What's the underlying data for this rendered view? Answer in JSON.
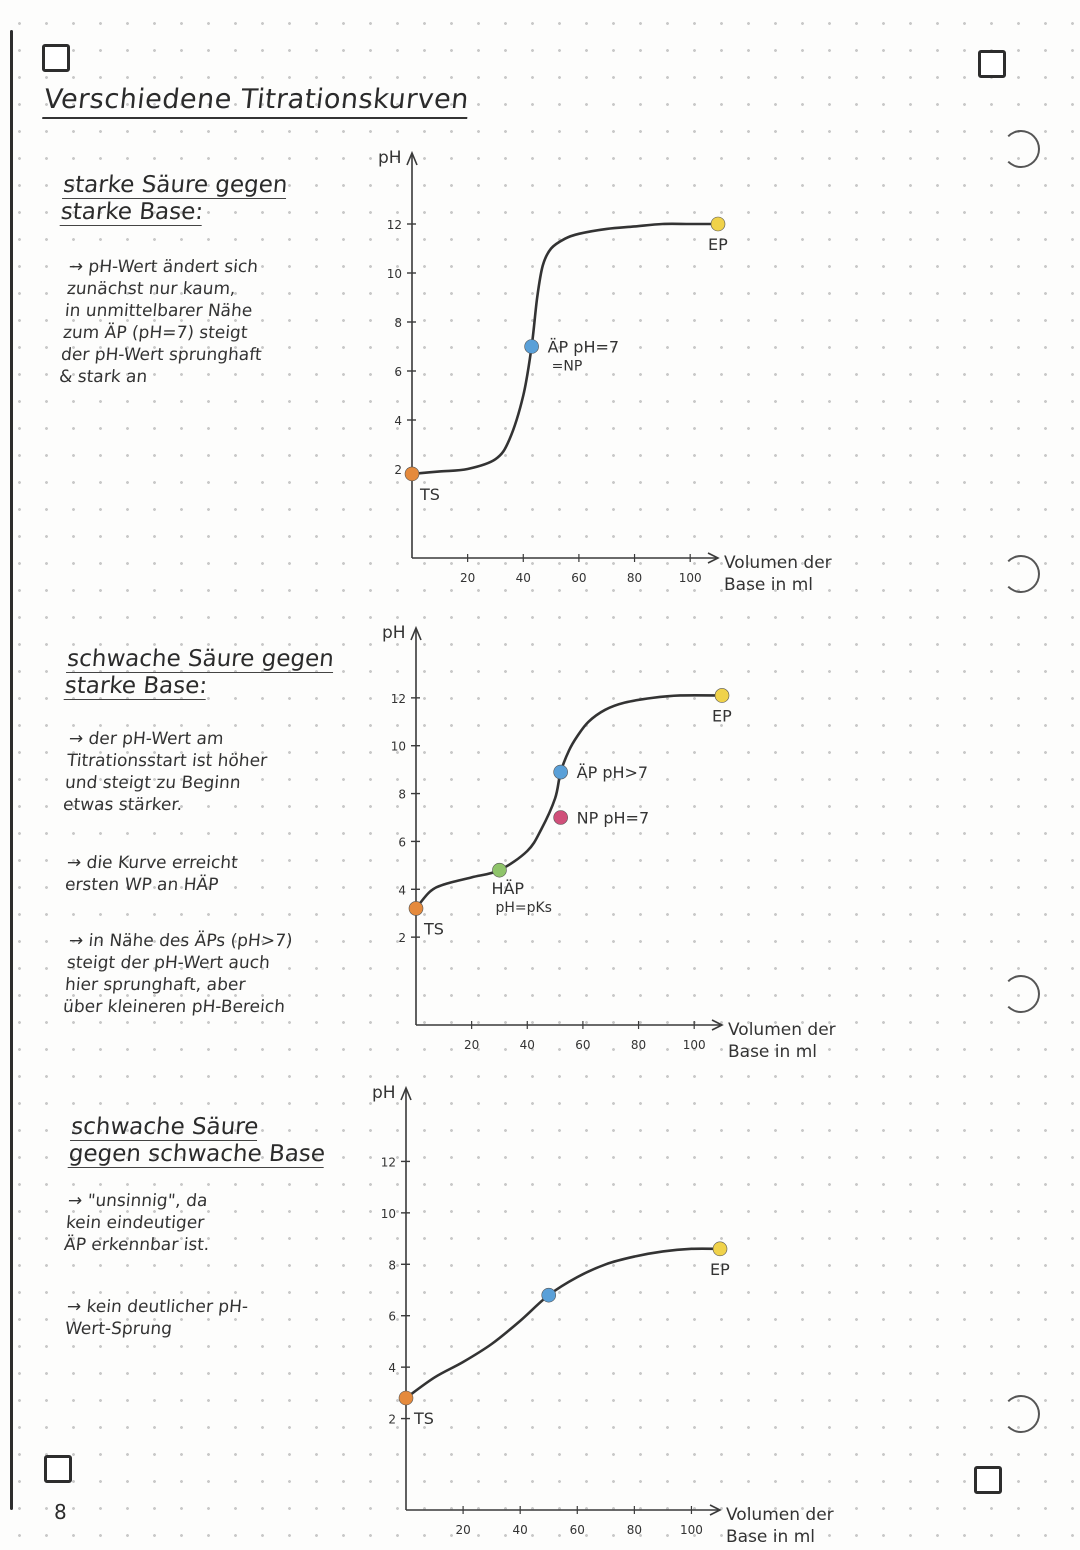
{
  "page": {
    "title": "Verschiedene Titrationskurven",
    "page_number": "8"
  },
  "colors": {
    "ts": "#e58a3c",
    "ep": "#f0d24a",
    "aep": "#5aa0d8",
    "np": "#d0507a",
    "haep": "#8fc46a",
    "curve": "#333333"
  },
  "sections": [
    {
      "heading_line1": "starke Säure gegen",
      "heading_line2": "starke Base:",
      "notes": [
        "→ pH-Wert ändert sich\nzunächst nur kaum,\nin unmittelbarer Nähe\nzum ÄP (pH=7) steigt\nder pH-Wert sprunghaft\n& stark an"
      ]
    },
    {
      "heading_line1": "schwache Säure gegen",
      "heading_line2": "starke Base:",
      "notes": [
        "→ der pH-Wert am\nTitrationsstart ist höher\nund steigt zu Beginn\netwas stärker.",
        "→ die Kurve erreicht\nersten WP an HÄP",
        "→ in Nähe des ÄPs (pH>7)\nsteigt der pH-Wert auch\nhier sprunghaft, aber\nüber kleineren pH-Bereich"
      ]
    },
    {
      "heading_line1": "schwache Säure",
      "heading_line2": "gegen schwache Base",
      "notes": [
        "→ \"unsinnig\", da\nkein eindeutiger\nÄP erkennbar ist.",
        "→ kein deutlicher pH-\nWert-Sprung"
      ]
    }
  ],
  "chart_data": [
    {
      "type": "line",
      "ylabel": "pH",
      "xlabel": "Volumen der Base in ml",
      "y_ticks": [
        "12",
        "10",
        "8",
        "6",
        "4",
        "2"
      ],
      "x_ticks": [
        "20",
        "40",
        "60",
        "80",
        "100"
      ],
      "xlim": [
        0,
        110
      ],
      "ylim": [
        0,
        14
      ],
      "series": [
        {
          "x": [
            0,
            10,
            20,
            30,
            35,
            40,
            43,
            45,
            47,
            50,
            55,
            60,
            70,
            80,
            90,
            100,
            110
          ],
          "y": [
            1.8,
            1.9,
            2.0,
            2.4,
            3.2,
            5.0,
            7.0,
            9.0,
            10.3,
            11.0,
            11.4,
            11.6,
            11.8,
            11.9,
            12.0,
            12.0,
            12.0
          ]
        }
      ],
      "points": [
        {
          "label": "TS",
          "x": 0,
          "y": 1.8,
          "color_key": "ts"
        },
        {
          "label": "ÄP pH=7",
          "label2": "=NP",
          "x": 43,
          "y": 7.0,
          "color_key": "aep"
        },
        {
          "label": "EP",
          "x": 110,
          "y": 12.0,
          "color_key": "ep"
        }
      ]
    },
    {
      "type": "line",
      "ylabel": "pH",
      "xlabel": "Volumen der Base in ml",
      "y_ticks": [
        "12",
        "10",
        "8",
        "6",
        "4",
        "2"
      ],
      "x_ticks": [
        "20",
        "40",
        "60",
        "80",
        "100"
      ],
      "xlim": [
        0,
        110
      ],
      "ylim": [
        0,
        14
      ],
      "series": [
        {
          "x": [
            0,
            5,
            10,
            20,
            30,
            40,
            45,
            50,
            52,
            55,
            58,
            62,
            68,
            75,
            85,
            95,
            110
          ],
          "y": [
            3.2,
            3.9,
            4.2,
            4.5,
            4.8,
            5.6,
            6.5,
            7.8,
            8.9,
            9.8,
            10.4,
            11.0,
            11.5,
            11.8,
            12.0,
            12.1,
            12.1
          ]
        }
      ],
      "points": [
        {
          "label": "TS",
          "x": 0,
          "y": 3.2,
          "color_key": "ts"
        },
        {
          "label": "HÄP",
          "label2": "pH=pKs",
          "x": 30,
          "y": 4.8,
          "color_key": "haep"
        },
        {
          "label": "NP pH=7",
          "x": 52,
          "y": 7.0,
          "color_key": "np"
        },
        {
          "label": "ÄP pH>7",
          "x": 52,
          "y": 8.9,
          "color_key": "aep"
        },
        {
          "label": "EP",
          "x": 110,
          "y": 12.1,
          "color_key": "ep"
        }
      ]
    },
    {
      "type": "line",
      "ylabel": "pH",
      "xlabel": "Volumen der Base in ml",
      "y_ticks": [
        "12",
        "10",
        "8",
        "6",
        "4",
        "2"
      ],
      "x_ticks": [
        "20",
        "40",
        "60",
        "80",
        "100"
      ],
      "xlim": [
        0,
        110
      ],
      "ylim": [
        0,
        14
      ],
      "series": [
        {
          "x": [
            0,
            10,
            20,
            30,
            40,
            50,
            60,
            70,
            80,
            90,
            100,
            110
          ],
          "y": [
            2.8,
            3.6,
            4.2,
            4.9,
            5.8,
            6.8,
            7.5,
            8.0,
            8.3,
            8.5,
            8.6,
            8.6
          ]
        }
      ],
      "points": [
        {
          "label": "TS",
          "x": 0,
          "y": 2.8,
          "color_key": "ts"
        },
        {
          "label": "",
          "x": 50,
          "y": 6.8,
          "color_key": "aep"
        },
        {
          "label": "EP",
          "x": 110,
          "y": 8.6,
          "color_key": "ep"
        }
      ]
    }
  ]
}
